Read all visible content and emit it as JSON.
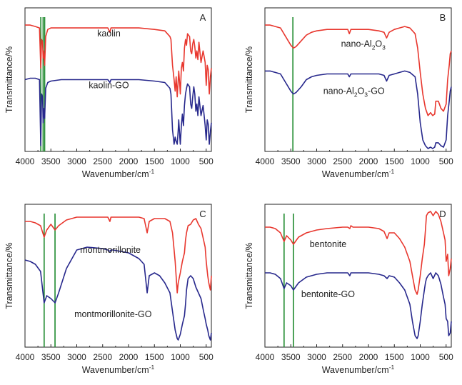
{
  "colors": {
    "red_series": "#e8372e",
    "blue_series": "#27288c",
    "marker_line": "#1f8a2e",
    "axis": "#222222"
  },
  "chart_data": [
    {
      "type": "line",
      "panel_letter": "A",
      "xlabel": "Wavenumber/cm",
      "xlabel_sup": "-1",
      "ylabel": "Transmittance/%",
      "xlim": [
        4000,
        400
      ],
      "xreversed": true,
      "ylim": [
        0,
        100
      ],
      "yticks_labeled": false,
      "xticks": [
        "4000",
        "3500",
        "3000",
        "2500",
        "2000",
        "1500",
        "1000",
        "500"
      ],
      "xtick_values": [
        4000,
        3500,
        3000,
        2500,
        2000,
        1500,
        1000,
        500
      ],
      "markers": [
        3695,
        3650,
        3620
      ],
      "labels": [
        {
          "parts": [
            {
              "t": "kaolin"
            }
          ],
          "x": 2380,
          "y": 80
        },
        {
          "parts": [
            {
              "t": "kaolin-GO"
            }
          ],
          "x": 2380,
          "y": 44
        }
      ],
      "series": [
        {
          "color": "red",
          "x": [
            4000,
            3900,
            3800,
            3720,
            3695,
            3680,
            3660,
            3650,
            3640,
            3620,
            3600,
            3560,
            3500,
            3300,
            3000,
            2600,
            2400,
            2360,
            2340,
            2300,
            2000,
            1800,
            1500,
            1300,
            1200,
            1180,
            1150,
            1120,
            1100,
            1080,
            1060,
            1040,
            1030,
            1010,
            1000,
            980,
            960,
            940,
            920,
            900,
            880,
            860,
            820,
            800,
            780,
            760,
            740,
            720,
            700,
            680,
            660,
            640,
            600,
            560,
            540,
            520,
            500,
            480,
            460,
            440,
            420,
            400
          ],
          "y": [
            88,
            88,
            87,
            86,
            58,
            78,
            76,
            65,
            70,
            60,
            80,
            85,
            86,
            86,
            86,
            86,
            86,
            83,
            86,
            86,
            86,
            86,
            85,
            84,
            80,
            78,
            60,
            50,
            42,
            52,
            38,
            50,
            56,
            46,
            40,
            58,
            62,
            56,
            72,
            78,
            74,
            82,
            80,
            70,
            68,
            75,
            78,
            73,
            65,
            70,
            64,
            76,
            62,
            70,
            66,
            62,
            46,
            60,
            57,
            40,
            52,
            58
          ]
        },
        {
          "color": "blue",
          "x": [
            4000,
            3900,
            3800,
            3720,
            3695,
            3680,
            3660,
            3650,
            3640,
            3620,
            3600,
            3560,
            3500,
            3300,
            3000,
            2600,
            2400,
            2360,
            2340,
            2300,
            2000,
            1800,
            1500,
            1300,
            1200,
            1180,
            1150,
            1120,
            1100,
            1080,
            1060,
            1040,
            1030,
            1010,
            1000,
            980,
            960,
            940,
            920,
            900,
            880,
            860,
            820,
            800,
            780,
            760,
            740,
            720,
            700,
            680,
            660,
            640,
            600,
            560,
            540,
            520,
            500,
            480,
            460,
            440,
            420,
            400
          ],
          "y": [
            50,
            51,
            51,
            50,
            4,
            40,
            38,
            20,
            30,
            23,
            44,
            48,
            49,
            50,
            50,
            50,
            50,
            48,
            50,
            50,
            50,
            50,
            49,
            48,
            44,
            40,
            15,
            5,
            10,
            7,
            5,
            15,
            22,
            10,
            5,
            18,
            26,
            18,
            32,
            40,
            44,
            47,
            45,
            33,
            30,
            38,
            45,
            40,
            28,
            33,
            25,
            38,
            25,
            32,
            25,
            18,
            8,
            22,
            19,
            5,
            14,
            20
          ]
        }
      ]
    },
    {
      "type": "line",
      "panel_letter": "B",
      "xlabel": "Wavenumber/cm",
      "xlabel_sup": "-1",
      "ylabel": "Transmittance/%",
      "xlim": [
        4000,
        400
      ],
      "xreversed": true,
      "ylim": [
        0,
        100
      ],
      "yticks_labeled": false,
      "xticks": [
        "4000",
        "3500",
        "3000",
        "2500",
        "2000",
        "1500",
        "1000",
        "500"
      ],
      "xtick_values": [
        4000,
        3500,
        3000,
        2500,
        2000,
        1500,
        1000,
        500
      ],
      "markers": [
        3460
      ],
      "labels": [
        {
          "parts": [
            {
              "t": "nano-Al"
            },
            {
              "t": "2",
              "sub": true
            },
            {
              "t": "O"
            },
            {
              "t": "3",
              "sub": true
            }
          ],
          "x": 2100,
          "y": 73
        },
        {
          "parts": [
            {
              "t": "nano-Al"
            },
            {
              "t": "2",
              "sub": true
            },
            {
              "t": "O"
            },
            {
              "t": "3",
              "sub": true
            },
            {
              "t": "-GO"
            }
          ],
          "x": 2280,
          "y": 40
        }
      ],
      "series": [
        {
          "color": "red",
          "x": [
            4000,
            3900,
            3800,
            3700,
            3600,
            3500,
            3450,
            3400,
            3300,
            3200,
            3100,
            3000,
            2800,
            2600,
            2400,
            2370,
            2340,
            2300,
            2100,
            2000,
            1800,
            1700,
            1650,
            1600,
            1500,
            1400,
            1300,
            1200,
            1100,
            1050,
            1000,
            950,
            900,
            850,
            800,
            760,
            720,
            700,
            650,
            600,
            550,
            500,
            470,
            440,
            420,
            400
          ],
          "y": [
            88,
            88,
            87,
            86,
            80,
            74,
            72,
            73,
            77,
            81,
            83,
            84,
            85,
            85,
            85,
            82,
            85,
            85,
            85,
            85,
            84,
            83,
            79,
            83,
            85,
            86,
            87,
            86,
            82,
            72,
            55,
            40,
            30,
            25,
            27,
            25,
            26,
            35,
            35,
            30,
            28,
            33,
            50,
            60,
            68,
            70
          ]
        },
        {
          "color": "blue",
          "x": [
            4000,
            3900,
            3800,
            3700,
            3600,
            3500,
            3450,
            3400,
            3300,
            3200,
            3100,
            3000,
            2800,
            2600,
            2400,
            2370,
            2340,
            2300,
            2100,
            2000,
            1800,
            1700,
            1650,
            1600,
            1500,
            1400,
            1300,
            1200,
            1100,
            1050,
            1000,
            950,
            900,
            850,
            800,
            760,
            720,
            700,
            650,
            600,
            550,
            500,
            470,
            440,
            420,
            400
          ],
          "y": [
            56,
            56,
            55,
            54,
            48,
            42,
            40,
            41,
            45,
            50,
            52,
            53,
            54,
            54,
            54,
            52,
            54,
            54,
            54,
            54,
            54,
            53,
            49,
            53,
            54,
            55,
            56,
            55,
            52,
            40,
            20,
            8,
            4,
            2,
            3,
            2,
            3,
            6,
            6,
            4,
            3,
            8,
            25,
            35,
            42,
            45
          ]
        }
      ]
    },
    {
      "type": "line",
      "panel_letter": "C",
      "xlabel": "Wavenumber/cm",
      "xlabel_sup": "-1",
      "ylabel": "Transmittance/%",
      "xlim": [
        4000,
        400
      ],
      "xreversed": true,
      "ylim": [
        0,
        100
      ],
      "yticks_labeled": false,
      "xticks": [
        "4000",
        "3500",
        "3000",
        "2500",
        "2000",
        "1500",
        "1000",
        "500"
      ],
      "xtick_values": [
        4000,
        3500,
        3000,
        2500,
        2000,
        1500,
        1000,
        500
      ],
      "markers": [
        3630,
        3420
      ],
      "labels": [
        {
          "parts": [
            {
              "t": "montmorillonite"
            }
          ],
          "x": 2350,
          "y": 66
        },
        {
          "parts": [
            {
              "t": "montmorillonite-GO"
            }
          ],
          "x": 2300,
          "y": 21
        }
      ],
      "series": [
        {
          "color": "red",
          "x": [
            4000,
            3900,
            3800,
            3700,
            3630,
            3580,
            3500,
            3420,
            3350,
            3200,
            3000,
            2800,
            2500,
            2400,
            2360,
            2340,
            2300,
            2000,
            1800,
            1700,
            1640,
            1600,
            1500,
            1400,
            1300,
            1200,
            1150,
            1100,
            1060,
            1040,
            1000,
            960,
            920,
            900,
            880,
            850,
            800,
            750,
            700,
            650,
            600,
            550,
            520,
            500,
            470,
            450,
            420,
            400
          ],
          "y": [
            88,
            88,
            87,
            85,
            77,
            82,
            86,
            82,
            85,
            89,
            91,
            91,
            91,
            91,
            88,
            91,
            91,
            91,
            91,
            90,
            80,
            88,
            90,
            90,
            90,
            88,
            80,
            60,
            38,
            45,
            52,
            60,
            66,
            75,
            80,
            85,
            86,
            89,
            90,
            86,
            83,
            75,
            70,
            60,
            50,
            45,
            40,
            50
          ]
        },
        {
          "color": "blue",
          "x": [
            4000,
            3900,
            3800,
            3700,
            3630,
            3580,
            3500,
            3420,
            3350,
            3200,
            3000,
            2800,
            2500,
            2400,
            2360,
            2340,
            2300,
            2000,
            1800,
            1700,
            1640,
            1600,
            1500,
            1400,
            1300,
            1200,
            1150,
            1100,
            1060,
            1040,
            1000,
            960,
            920,
            900,
            880,
            850,
            800,
            750,
            700,
            650,
            600,
            550,
            520,
            500,
            470,
            450,
            420,
            400
          ],
          "y": [
            61,
            60,
            58,
            53,
            31,
            36,
            34,
            31,
            38,
            55,
            68,
            70,
            69,
            68,
            67,
            68,
            68,
            66,
            62,
            58,
            38,
            50,
            52,
            50,
            45,
            38,
            25,
            12,
            6,
            5,
            9,
            16,
            22,
            30,
            40,
            48,
            50,
            48,
            42,
            38,
            34,
            25,
            20,
            16,
            12,
            8,
            5,
            10
          ]
        }
      ]
    },
    {
      "type": "line",
      "panel_letter": "D",
      "xlabel": "Wavenumber/cm",
      "xlabel_sup": "-1",
      "ylabel": "Transmittance/%",
      "xlim": [
        4000,
        400
      ],
      "xreversed": true,
      "ylim": [
        0,
        100
      ],
      "yticks_labeled": false,
      "xticks": [
        "4000",
        "3500",
        "3000",
        "2500",
        "2000",
        "1500",
        "1000",
        "500"
      ],
      "xtick_values": [
        4000,
        3500,
        3000,
        2500,
        2000,
        1500,
        1000,
        500
      ],
      "markers": [
        3630,
        3450
      ],
      "labels": [
        {
          "parts": [
            {
              "t": "bentonite"
            }
          ],
          "x": 2780,
          "y": 70
        },
        {
          "parts": [
            {
              "t": "bentonite-GO"
            }
          ],
          "x": 2780,
          "y": 35
        }
      ],
      "series": [
        {
          "color": "red",
          "x": [
            4000,
            3900,
            3800,
            3700,
            3630,
            3580,
            3500,
            3450,
            3350,
            3200,
            3000,
            2800,
            2500,
            2400,
            2360,
            2340,
            2300,
            2000,
            1800,
            1700,
            1640,
            1600,
            1500,
            1400,
            1300,
            1200,
            1150,
            1100,
            1060,
            1040,
            1000,
            960,
            920,
            900,
            880,
            850,
            800,
            750,
            700,
            650,
            600,
            550,
            520,
            500,
            470,
            450,
            420,
            400
          ],
          "y": [
            84,
            84,
            83,
            80,
            74,
            78,
            75,
            72,
            77,
            80,
            82,
            83,
            84,
            84,
            83,
            85,
            84,
            84,
            83,
            81,
            76,
            80,
            80,
            76,
            70,
            60,
            50,
            40,
            37,
            40,
            50,
            62,
            72,
            82,
            92,
            94,
            95,
            92,
            95,
            93,
            88,
            80,
            75,
            60,
            65,
            50,
            55,
            62
          ]
        },
        {
          "color": "blue",
          "x": [
            4000,
            3900,
            3800,
            3700,
            3630,
            3580,
            3500,
            3450,
            3350,
            3200,
            3000,
            2800,
            2500,
            2400,
            2360,
            2340,
            2300,
            2000,
            1800,
            1700,
            1640,
            1600,
            1500,
            1400,
            1300,
            1200,
            1150,
            1100,
            1060,
            1040,
            1000,
            960,
            920,
            900,
            880,
            850,
            800,
            750,
            700,
            650,
            600,
            550,
            520,
            500,
            470,
            450,
            420,
            400
          ],
          "y": [
            52,
            52,
            51,
            48,
            41,
            45,
            43,
            40,
            45,
            49,
            51,
            52,
            52,
            52,
            50,
            52,
            52,
            52,
            51,
            50,
            48,
            50,
            49,
            45,
            40,
            30,
            18,
            8,
            6,
            8,
            18,
            30,
            40,
            45,
            48,
            50,
            52,
            48,
            52,
            50,
            44,
            35,
            30,
            20,
            18,
            8,
            10,
            18
          ]
        }
      ]
    }
  ]
}
